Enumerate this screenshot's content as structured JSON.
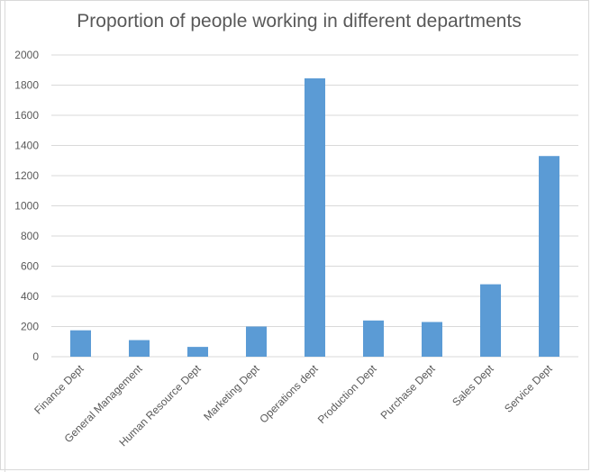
{
  "chart_data": {
    "type": "bar",
    "title": "Proportion of people working in different departments",
    "categories": [
      "Finance Dept",
      "General Management",
      "Human Resource Dept",
      "Marketing Dept",
      "Operations dept",
      "Production Dept",
      "Purchase Dept",
      "Sales Dept",
      "Service Dept"
    ],
    "values": [
      175,
      110,
      65,
      200,
      1845,
      240,
      230,
      480,
      1330
    ],
    "ylim": [
      0,
      2000
    ],
    "yticks": [
      "0",
      "200",
      "400",
      "600",
      "800",
      "1000",
      "1200",
      "1400",
      "1600",
      "1800",
      "2000"
    ],
    "grid": true,
    "legend": "none",
    "bar_color": "#5b9bd5",
    "grid_color": "#d9d9d9",
    "text_color": "#595959"
  }
}
